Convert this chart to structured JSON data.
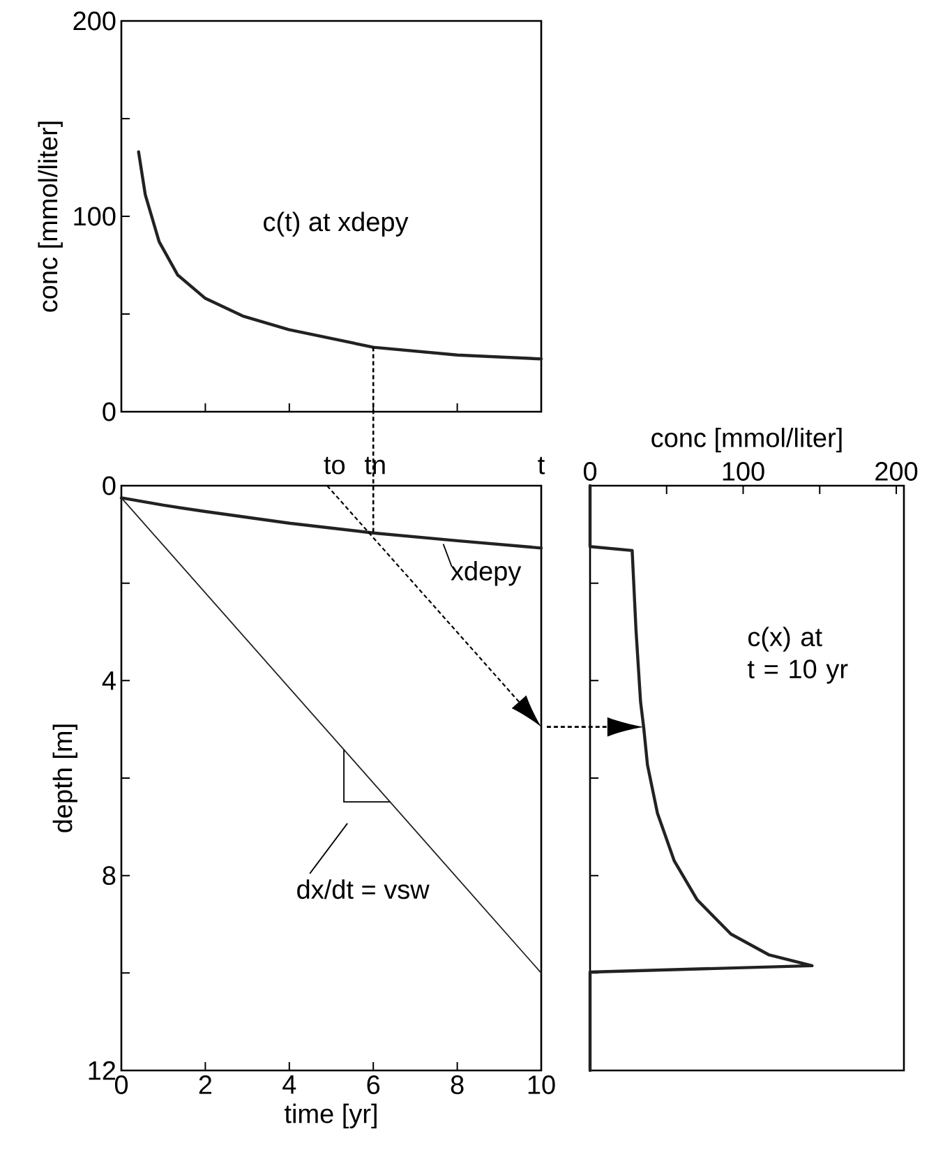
{
  "chart_data": [
    {
      "type": "line",
      "ylabel": "conc [mmol/liter]",
      "xlim": [
        0,
        10
      ],
      "xticks": [
        0,
        2,
        4,
        6,
        8,
        10
      ],
      "ylim": [
        0,
        200
      ],
      "yticks": [
        0,
        {
          "value": 50,
          "label": null
        },
        100,
        {
          "value": 150,
          "label": null
        },
        200
      ],
      "tick_labels": "y",
      "series": [
        {
          "name": "c(t) at xdepy",
          "color": "#222222",
          "x": [
            0.41,
            0.57,
            0.9,
            1.34,
            2,
            2.89,
            3.99,
            6,
            8,
            10
          ],
          "values": [
            133,
            111,
            87,
            70,
            58,
            49,
            42,
            33,
            29,
            27
          ]
        }
      ]
    },
    {
      "type": "line",
      "xlabel": "time [yr]",
      "ylabel": "depth [m]",
      "xlim": [
        0,
        10
      ],
      "xticks": [
        0,
        2,
        4,
        6,
        8,
        10
      ],
      "ylim": [
        12,
        0
      ],
      "yticks": [
        0,
        {
          "value": 2,
          "label": null
        },
        4,
        {
          "value": 6,
          "label": null
        },
        8,
        {
          "value": 10,
          "label": null
        },
        12
      ],
      "annotations": [
        "to",
        "tn",
        "t"
      ],
      "series": [
        {
          "name": "xdepy",
          "color": "#222222",
          "x": [
            0,
            1,
            2,
            4,
            6,
            8,
            10
          ],
          "values": [
            0.25,
            0.4,
            0.53,
            0.77,
            0.97,
            1.13,
            1.28
          ]
        },
        {
          "name": "dx/dt = vsw",
          "color": "#222222",
          "x": [
            0,
            10
          ],
          "values": [
            0.25,
            10
          ]
        }
      ]
    },
    {
      "type": "line",
      "xlabel": "conc [mmol/liter]",
      "xlim": [
        0,
        205
      ],
      "xticks": [
        0,
        {
          "value": 50,
          "label": null
        },
        100,
        {
          "value": 150,
          "label": null
        },
        200
      ],
      "ylim": [
        12,
        0
      ],
      "yticks": [
        {
          "value": 0,
          "label": null
        },
        {
          "value": 2,
          "label": null
        },
        {
          "value": 4,
          "label": null
        },
        {
          "value": 6,
          "label": null
        },
        {
          "value": 8,
          "label": null
        },
        {
          "value": 10,
          "label": null
        },
        {
          "value": 12,
          "label": null
        }
      ],
      "tick_labels": "x",
      "series": [
        {
          "name": "c(x) at t = 10 yr",
          "color": "#222222",
          "x": [
            0,
            0,
            27.5,
            30,
            33,
            35,
            37.5,
            44,
            55,
            70,
            92,
            117,
            145,
            0,
            0
          ],
          "values": [
            0,
            1.25,
            1.33,
            2.96,
            4.44,
            4.95,
            5.73,
            6.72,
            7.7,
            8.5,
            9.2,
            9.63,
            9.85,
            9.98,
            12
          ]
        }
      ]
    }
  ]
}
